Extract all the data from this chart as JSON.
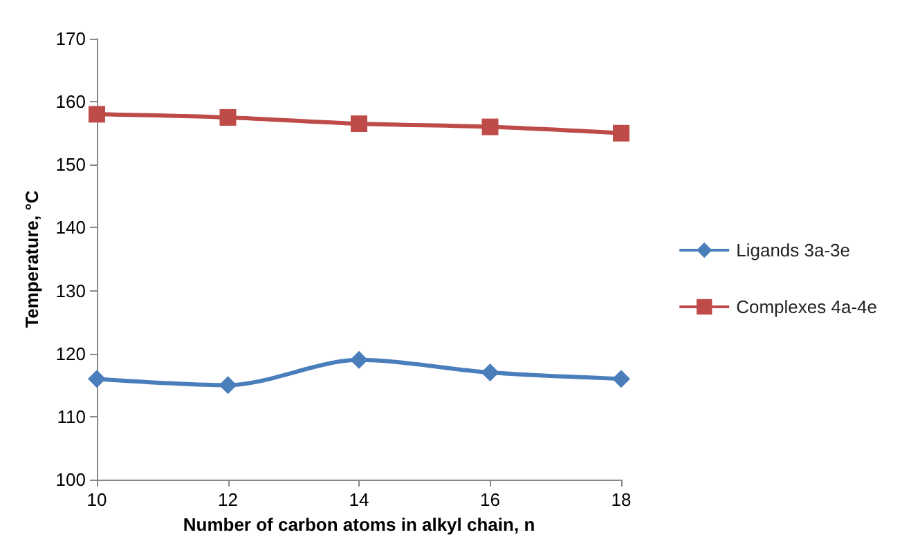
{
  "chart_data": {
    "type": "line",
    "xlabel": "Number of carbon atoms in alkyl chain, n",
    "ylabel": "Temperature, °C",
    "x": [
      10,
      12,
      14,
      16,
      18
    ],
    "xlim": [
      10,
      18
    ],
    "xticks": [
      10,
      12,
      14,
      16,
      18
    ],
    "ylim": [
      100,
      170
    ],
    "yticks": [
      100,
      110,
      120,
      130,
      140,
      150,
      160,
      170
    ],
    "grid": false,
    "legend": "right",
    "series": [
      {
        "name": "Ligands 3a-3e",
        "color": "#4a7ebb",
        "marker": "diamond",
        "values": [
          116,
          115,
          119,
          117,
          116
        ]
      },
      {
        "name": "Complexes 4a-4e",
        "color": "#be4b48",
        "marker": "square",
        "values": [
          158,
          157.5,
          156.5,
          156,
          155
        ]
      }
    ]
  }
}
